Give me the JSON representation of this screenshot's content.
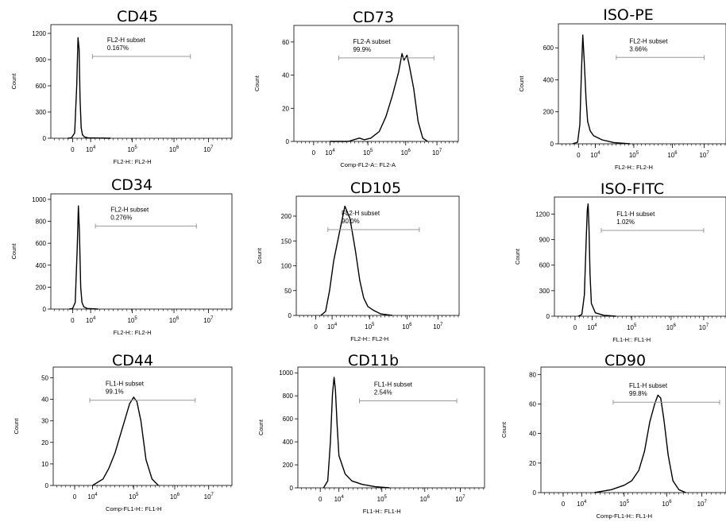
{
  "chart_data": [
    {
      "type": "area",
      "title": "CD45",
      "ylabel": "Count",
      "xlabel": "FL2-H:: FL2-H",
      "ylim": [
        0,
        1300
      ],
      "yticks": [
        0,
        300,
        600,
        900,
        1200
      ],
      "xticks": [
        "0",
        "10^4",
        "10^5",
        "10^6",
        "10^7"
      ],
      "gate": {
        "label": "FL2-H subset",
        "percent": "0.167%",
        "from": 11000,
        "to": 3000000
      },
      "series": [
        {
          "x": [
            600,
            900,
            1300,
            1700,
            2000,
            2300,
            2600,
            3000,
            3500,
            4500,
            7000,
            30000
          ],
          "y": [
            0,
            5,
            60,
            600,
            1150,
            1020,
            450,
            120,
            40,
            15,
            5,
            0
          ]
        }
      ]
    },
    {
      "type": "area",
      "title": "CD73",
      "ylabel": "Count",
      "xlabel": "Comp-FL2-A:: FL2-A",
      "ylim": [
        0,
        70
      ],
      "yticks": [
        0,
        20,
        40,
        60
      ],
      "xticks": [
        "0",
        "10^4",
        "10^5",
        "10^6",
        "10^7"
      ],
      "gate": {
        "label": "FL2-A subset",
        "percent": "99.9%",
        "from": 17000,
        "to": 8000000
      },
      "series": [
        {
          "x": [
            10000,
            30000,
            60000,
            80000,
            120000,
            200000,
            300000,
            450000,
            650000,
            800000,
            900000,
            1100000,
            1300000,
            1800000,
            2500000,
            3500000,
            5000000
          ],
          "y": [
            0,
            0,
            2,
            1,
            2,
            6,
            15,
            28,
            42,
            53,
            49,
            52,
            46,
            32,
            12,
            2,
            0
          ]
        }
      ]
    },
    {
      "type": "area",
      "title": "ISO-PE",
      "ylabel": "Count",
      "xlabel": "FL2-H:: FL2-H",
      "ylim": [
        0,
        750
      ],
      "yticks": [
        0,
        200,
        400,
        600
      ],
      "xticks": [
        "0",
        "10^4",
        "10^5",
        "10^6",
        "10^7"
      ],
      "gate": {
        "label": "FL2-H subset",
        "percent": "3.66%",
        "from": 35000,
        "to": 10000000
      },
      "series": [
        {
          "x": [
            500,
            900,
            1200,
            1500,
            1800,
            2200,
            2800,
            3500,
            5000,
            8000,
            15000,
            30000,
            80000
          ],
          "y": [
            0,
            10,
            120,
            450,
            680,
            520,
            280,
            140,
            80,
            50,
            25,
            8,
            0
          ]
        }
      ]
    },
    {
      "type": "area",
      "title": "CD34",
      "ylabel": "Count",
      "xlabel": "FL2-H:: FL2-H",
      "ylim": [
        0,
        1050
      ],
      "yticks": [
        0,
        200,
        400,
        600,
        800,
        1000
      ],
      "xticks": [
        "0",
        "10^4",
        "10^5",
        "10^6",
        "10^7"
      ],
      "gate": {
        "label": "FL2-H subset",
        "percent": "0.276%",
        "from": 13000,
        "to": 4500000
      },
      "series": [
        {
          "x": [
            700,
            1000,
            1400,
            1800,
            2100,
            2400,
            2800,
            3300,
            4200,
            6500,
            15000
          ],
          "y": [
            0,
            5,
            60,
            550,
            940,
            700,
            200,
            60,
            20,
            5,
            0
          ]
        }
      ]
    },
    {
      "type": "area",
      "title": "CD105",
      "ylabel": "Count",
      "xlabel": "FL2-H:: FL2-H",
      "ylim": [
        0,
        240
      ],
      "yticks": [
        0,
        50,
        100,
        150,
        200
      ],
      "xticks": [
        "0",
        "10^4",
        "10^5",
        "10^6",
        "10^7"
      ],
      "gate": {
        "label": "FL2-H subset",
        "percent": "90.0%",
        "from": 5500,
        "to": 2500000
      },
      "series": [
        {
          "x": [
            2000,
            4000,
            7000,
            11000,
            16000,
            22000,
            30000,
            42000,
            55000,
            70000,
            90000,
            130000,
            200000,
            400000
          ],
          "y": [
            0,
            8,
            50,
            110,
            170,
            220,
            195,
            130,
            70,
            35,
            18,
            10,
            3,
            0
          ]
        }
      ]
    },
    {
      "type": "area",
      "title": "ISO-FITC",
      "ylabel": "Count",
      "xlabel": "FL1-H:: FL1-H",
      "ylim": [
        0,
        1400
      ],
      "yticks": [
        0,
        300,
        600,
        900,
        1200
      ],
      "xticks": [
        "0",
        "10^4",
        "10^5",
        "10^6",
        "10^7"
      ],
      "gate": {
        "label": "FL1-H subset",
        "percent": "1.02%",
        "from": 17000,
        "to": 10000000
      },
      "series": [
        {
          "x": [
            1500,
            2500,
            3500,
            4500,
            5200,
            5800,
            6500,
            7500,
            9000,
            12000,
            20000,
            40000
          ],
          "y": [
            0,
            20,
            250,
            900,
            1250,
            1320,
            1050,
            500,
            150,
            40,
            10,
            0
          ]
        }
      ]
    },
    {
      "type": "area",
      "title": "CD44",
      "ylabel": "Count",
      "xlabel": "Comp-FL1-H:: FL1-H",
      "ylim": [
        0,
        55
      ],
      "yticks": [
        0,
        10,
        20,
        30,
        40,
        50
      ],
      "xticks": [
        "0",
        "10^4",
        "10^5",
        "10^6",
        "10^7"
      ],
      "gate": {
        "label": "FL1-H subset",
        "percent": "99.1%",
        "from": 7000,
        "to": 4000000
      },
      "series": [
        {
          "x": [
            10000,
            18000,
            25000,
            35000,
            45000,
            60000,
            80000,
            100000,
            120000,
            150000,
            200000,
            280000,
            400000
          ],
          "y": [
            0,
            3,
            8,
            15,
            22,
            30,
            38,
            41,
            39,
            30,
            12,
            3,
            0
          ]
        }
      ]
    },
    {
      "type": "area",
      "title": "CD11b",
      "ylabel": "Count",
      "xlabel": "FL1-H:: FL1-H",
      "ylim": [
        0,
        1050
      ],
      "yticks": [
        0,
        200,
        400,
        600,
        800,
        1000
      ],
      "xticks": [
        "0",
        "10^4",
        "10^5",
        "10^6",
        "10^7"
      ],
      "gate": {
        "label": "FL1-H subset",
        "percent": "2.54%",
        "from": 30000,
        "to": 8000000
      },
      "series": [
        {
          "x": [
            1500,
            2500,
            3500,
            4500,
            5500,
            6500,
            8000,
            10000,
            14000,
            20000,
            35000,
            70000,
            150000
          ],
          "y": [
            0,
            60,
            400,
            820,
            960,
            850,
            550,
            280,
            120,
            60,
            30,
            10,
            0
          ]
        }
      ]
    },
    {
      "type": "area",
      "title": "CD90",
      "ylabel": "Count",
      "xlabel": "Comp-FL1-H:: FL1-H",
      "ylim": [
        0,
        85
      ],
      "yticks": [
        0,
        20,
        40,
        60,
        80
      ],
      "xticks": [
        "0",
        "10^4",
        "10^5",
        "10^6",
        "10^7"
      ],
      "gate": {
        "label": "FL1-H subset",
        "percent": "99.8%",
        "from": 55000,
        "to": 30000000
      },
      "series": [
        {
          "x": [
            20000,
            50000,
            100000,
            150000,
            220000,
            300000,
            400000,
            520000,
            620000,
            720000,
            850000,
            1100000,
            1500000,
            2200000,
            3500000
          ],
          "y": [
            0,
            2,
            5,
            8,
            15,
            28,
            48,
            60,
            66,
            64,
            50,
            25,
            8,
            2,
            0
          ]
        }
      ]
    }
  ]
}
